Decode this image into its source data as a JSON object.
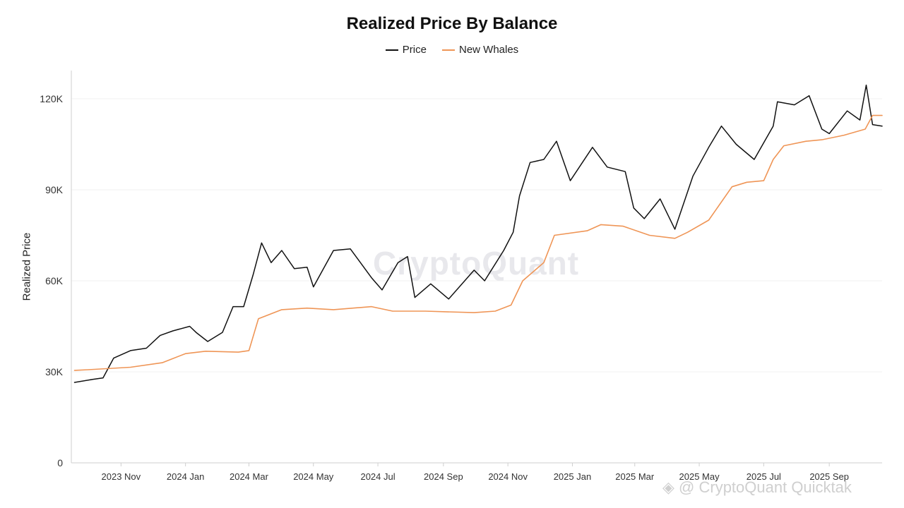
{
  "chart_data": {
    "type": "line",
    "title": "Realized Price By Balance",
    "ylabel": "Realized Price",
    "xlabel": "",
    "ylim": [
      0,
      130000
    ],
    "yticks": [
      0,
      30000,
      60000,
      90000,
      120000
    ],
    "ytick_labels": [
      "0",
      "30K",
      "60K",
      "90K",
      "120K"
    ],
    "xlim": [
      "2023-09-15",
      "2025-10-21"
    ],
    "xticks": [
      "2023-11-01",
      "2024-01-01",
      "2024-03-01",
      "2024-05-01",
      "2024-07-01",
      "2024-09-01",
      "2024-11-01",
      "2025-01-01",
      "2025-03-01",
      "2025-05-01",
      "2025-07-01",
      "2025-09-01"
    ],
    "xtick_labels": [
      "2023 Nov",
      "2024 Jan",
      "2024 Mar",
      "2024 May",
      "2024 Jul",
      "2024 Sep",
      "2024 Nov",
      "2025 Jan",
      "2025 Mar",
      "2025 May",
      "2025 Jul",
      "2025 Sep"
    ],
    "grid": true,
    "legend_position": "top-center",
    "series": [
      {
        "name": "Price",
        "color": "#111111",
        "x": [
          "2023-09-18",
          "2023-10-05",
          "2023-10-15",
          "2023-10-25",
          "2023-11-10",
          "2023-11-25",
          "2023-12-08",
          "2023-12-20",
          "2024-01-05",
          "2024-01-11",
          "2024-01-22",
          "2024-02-05",
          "2024-02-15",
          "2024-02-25",
          "2024-03-05",
          "2024-03-13",
          "2024-03-22",
          "2024-04-01",
          "2024-04-13",
          "2024-04-25",
          "2024-05-01",
          "2024-05-20",
          "2024-06-05",
          "2024-06-25",
          "2024-07-05",
          "2024-07-20",
          "2024-07-29",
          "2024-08-05",
          "2024-08-20",
          "2024-09-06",
          "2024-09-30",
          "2024-10-10",
          "2024-10-28",
          "2024-11-06",
          "2024-11-12",
          "2024-11-22",
          "2024-12-05",
          "2024-12-17",
          "2024-12-30",
          "2025-01-20",
          "2025-02-03",
          "2025-02-20",
          "2025-02-28",
          "2025-03-10",
          "2025-03-25",
          "2025-04-08",
          "2025-04-25",
          "2025-05-10",
          "2025-05-22",
          "2025-06-05",
          "2025-06-22",
          "2025-07-10",
          "2025-07-14",
          "2025-07-30",
          "2025-08-13",
          "2025-08-25",
          "2025-09-01",
          "2025-09-18",
          "2025-09-30",
          "2025-10-06",
          "2025-10-12",
          "2025-10-21"
        ],
        "y": [
          26500,
          27500,
          28000,
          34500,
          37000,
          37800,
          42000,
          43500,
          45000,
          43000,
          40000,
          43000,
          51500,
          51500,
          62000,
          72500,
          66000,
          70000,
          64000,
          64500,
          58000,
          70000,
          70500,
          61000,
          57000,
          66000,
          68000,
          54500,
          59000,
          54000,
          63500,
          60000,
          70000,
          76000,
          88000,
          99000,
          100000,
          106000,
          93000,
          104000,
          97500,
          96000,
          84000,
          80500,
          87000,
          77000,
          94500,
          104000,
          111000,
          105000,
          100000,
          111000,
          119000,
          118000,
          121000,
          110000,
          108500,
          116000,
          113000,
          124500,
          111500,
          111000
        ]
      },
      {
        "name": "New Whales",
        "color": "#ef9556",
        "x": [
          "2023-09-18",
          "2023-10-01",
          "2023-11-10",
          "2023-12-10",
          "2024-01-01",
          "2024-01-20",
          "2024-02-20",
          "2024-03-01",
          "2024-03-10",
          "2024-04-01",
          "2024-04-25",
          "2024-05-20",
          "2024-06-25",
          "2024-07-15",
          "2024-08-15",
          "2024-09-30",
          "2024-10-20",
          "2024-11-04",
          "2024-11-15",
          "2024-12-05",
          "2024-12-15",
          "2025-01-15",
          "2025-01-28",
          "2025-02-18",
          "2025-03-15",
          "2025-04-08",
          "2025-04-20",
          "2025-05-10",
          "2025-06-01",
          "2025-06-15",
          "2025-07-01",
          "2025-07-10",
          "2025-07-20",
          "2025-08-10",
          "2025-08-25",
          "2025-09-15",
          "2025-10-05",
          "2025-10-12",
          "2025-10-21"
        ],
        "y": [
          30500,
          30700,
          31500,
          33000,
          36000,
          36800,
          36500,
          37000,
          47500,
          50500,
          51000,
          50500,
          51500,
          50000,
          50000,
          49500,
          50000,
          52000,
          60000,
          66000,
          75000,
          76500,
          78500,
          78000,
          75000,
          74000,
          76000,
          80000,
          91000,
          92500,
          93000,
          100000,
          104500,
          106000,
          106500,
          108000,
          110000,
          114500,
          114500
        ]
      }
    ]
  }
}
